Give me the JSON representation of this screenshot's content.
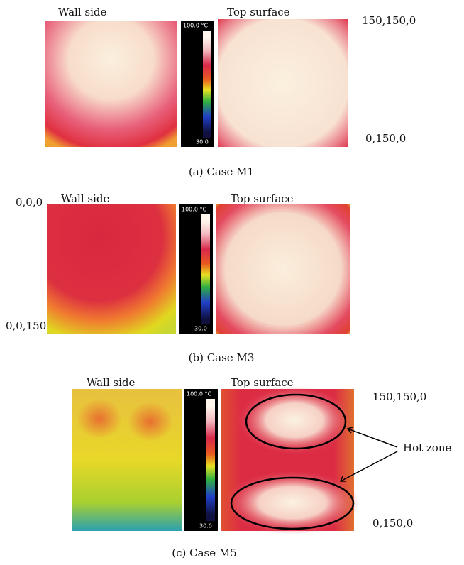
{
  "panels": [
    {
      "left_title": "Wall side",
      "right_title": "Top surface",
      "scale_max": "100.0 °C",
      "scale_min": "30.0",
      "caption": "(a) Case M1",
      "coords": [
        "150,150,0",
        "0,150,0"
      ]
    },
    {
      "left_title": "Wall side",
      "right_title": "Top surface",
      "scale_max": "100.0 °C",
      "scale_min": "30.0",
      "caption": "(b) Case M3",
      "coords": [
        "0,0,0",
        "0,0,150"
      ]
    },
    {
      "left_title": "Wall side",
      "right_title": "Top surface",
      "scale_max": "100.0 °C",
      "scale_min": "30.0",
      "caption": "(c) Case M5",
      "coords": [
        "150,150,0",
        "0,150,0"
      ],
      "annotation": "Hot zone"
    }
  ]
}
